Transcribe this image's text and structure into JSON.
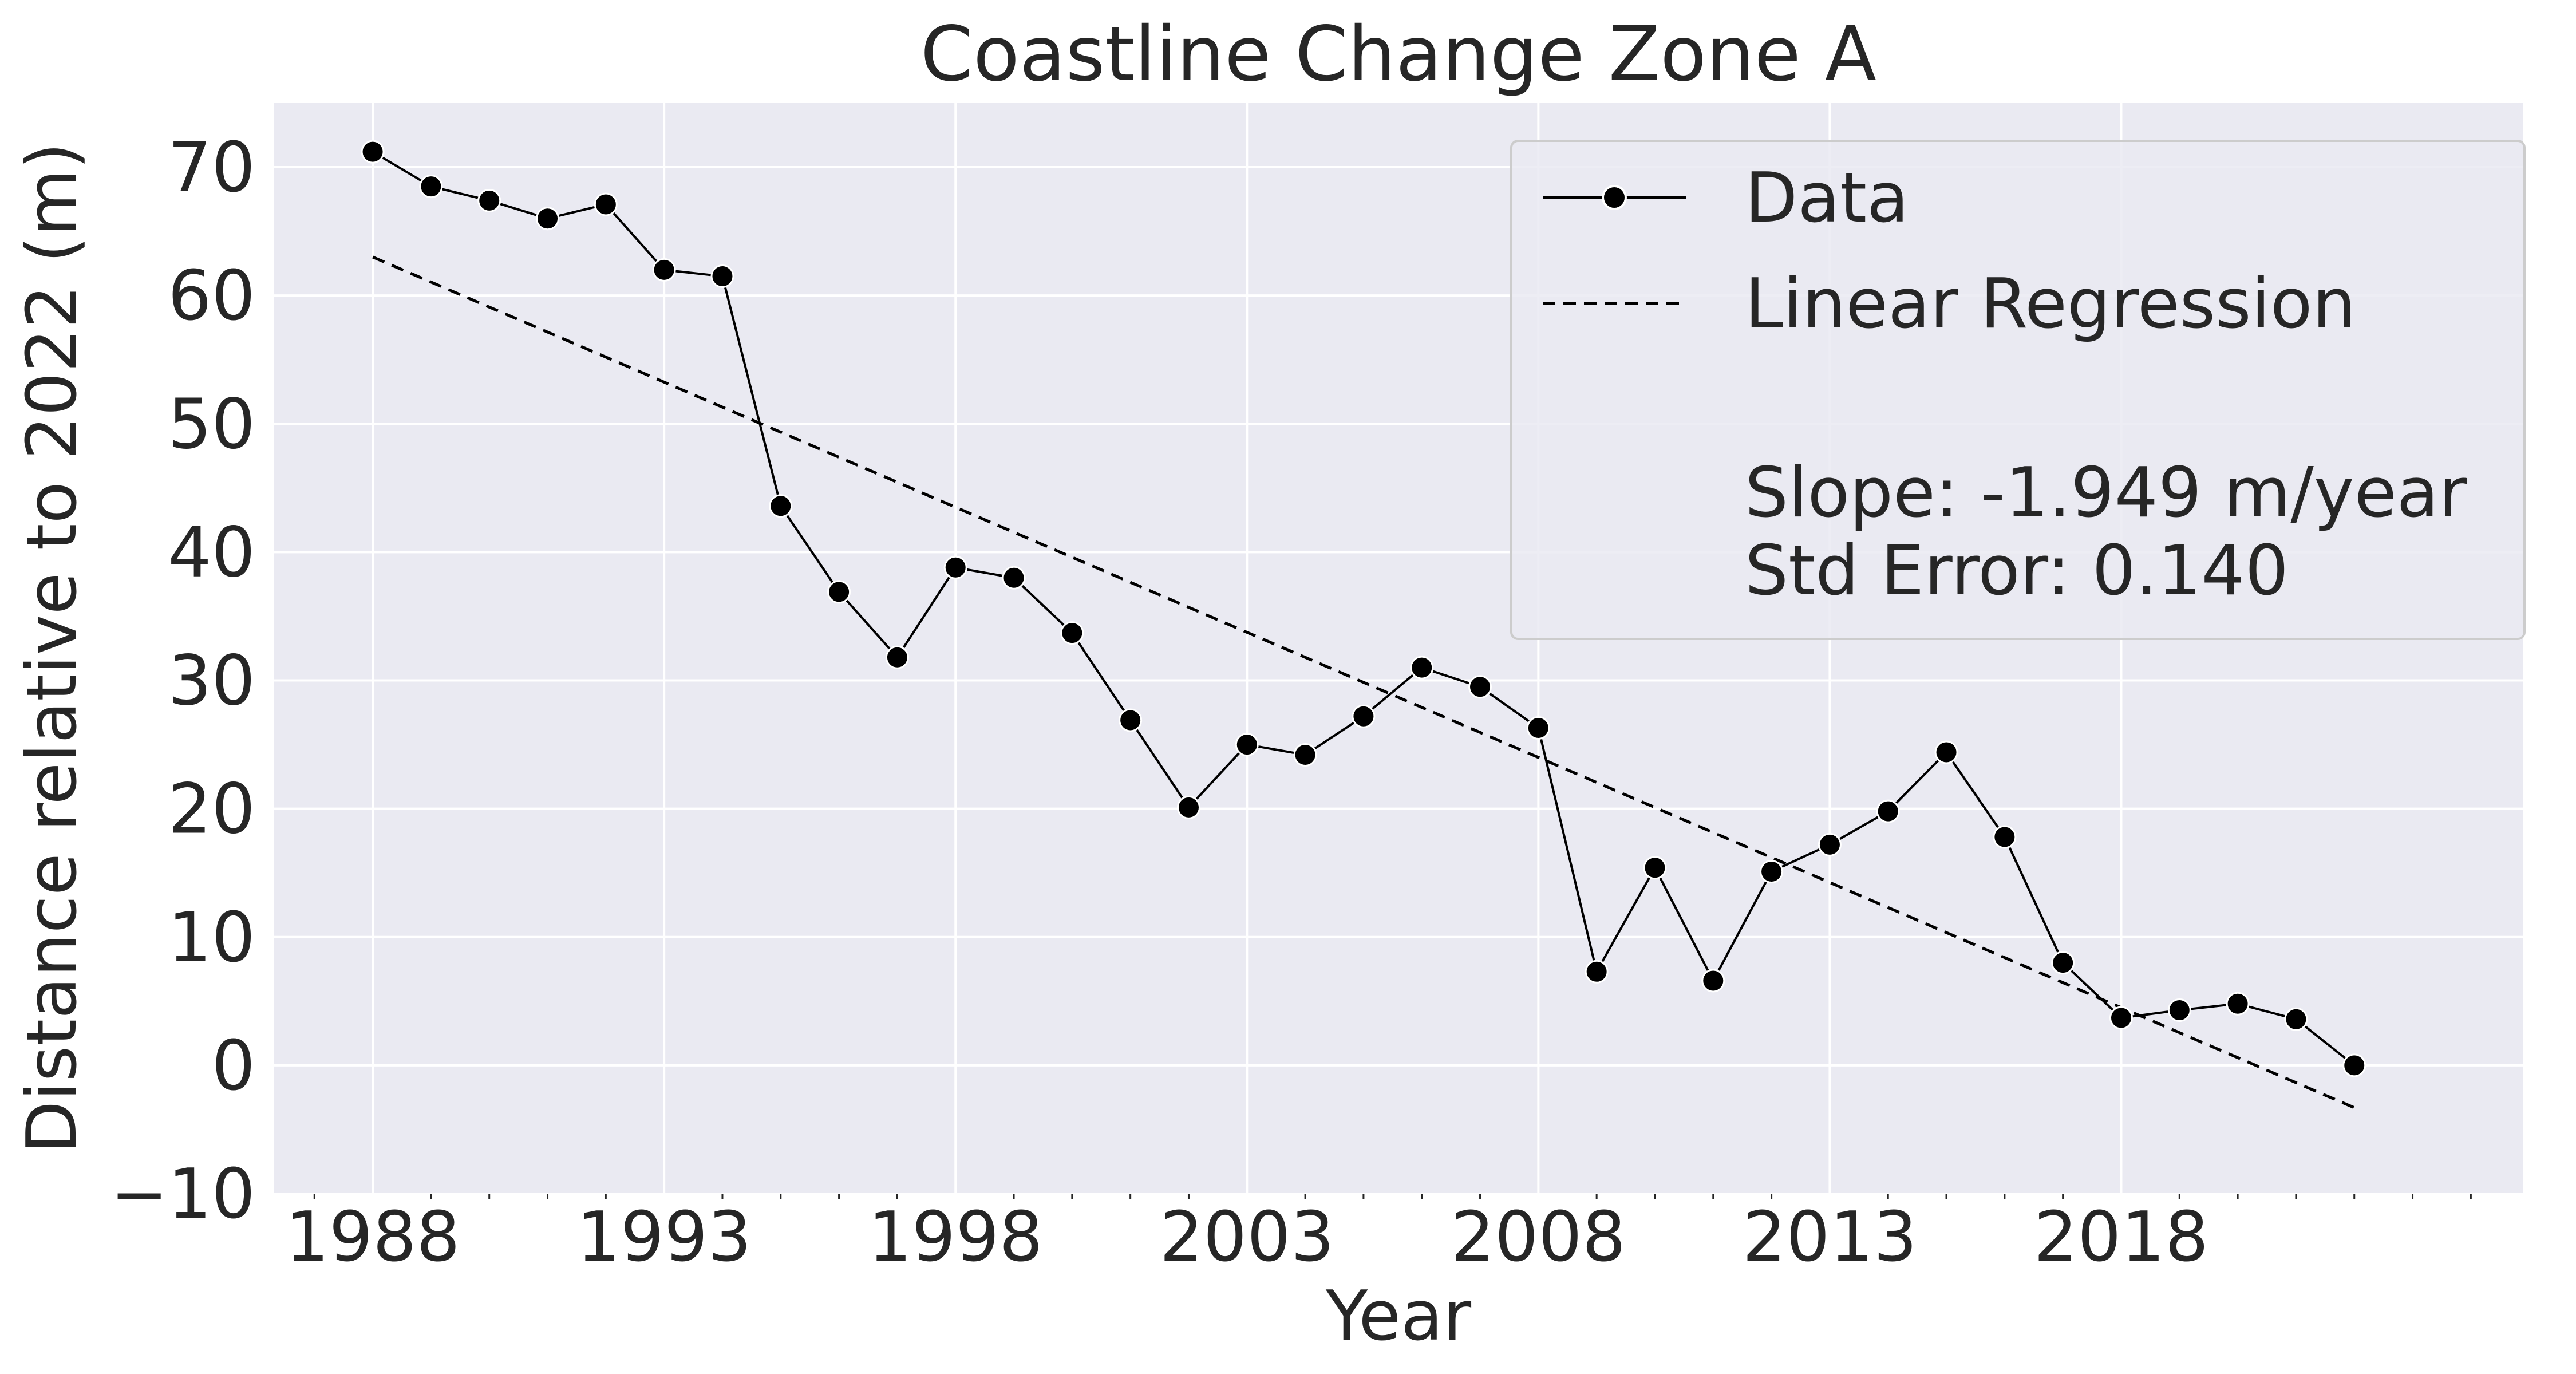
{
  "chart_data": {
    "type": "line",
    "title": "Coastline Change Zone A",
    "xlabel": "Year",
    "ylabel": "Distance relative to 2022 (m)",
    "xlim": [
      1986.3,
      2024.9
    ],
    "ylim": [
      -10,
      75
    ],
    "x_ticks": [
      1988,
      1993,
      1998,
      2003,
      2008,
      2013,
      2018
    ],
    "y_ticks": [
      -10,
      0,
      10,
      20,
      30,
      40,
      50,
      60,
      70
    ],
    "grid": true,
    "legend_position": "top-right",
    "series": [
      {
        "name": "Data",
        "style": "solid-with-markers",
        "color": "#000000",
        "x": [
          1988,
          1989,
          1990,
          1991,
          1992,
          1993,
          1994,
          1995,
          1996,
          1997,
          1998,
          1999,
          2000,
          2001,
          2002,
          2003,
          2004,
          2005,
          2006,
          2007,
          2008,
          2009,
          2010,
          2011,
          2012,
          2013,
          2014,
          2015,
          2016,
          2017,
          2018,
          2019,
          2020,
          2021,
          2022
        ],
        "y": [
          71.2,
          68.5,
          67.4,
          66.0,
          67.1,
          62.0,
          61.5,
          43.6,
          36.9,
          31.8,
          38.8,
          38.0,
          33.7,
          26.9,
          20.1,
          25.0,
          24.2,
          27.2,
          31.0,
          29.5,
          26.3,
          7.3,
          15.4,
          6.6,
          15.1,
          17.2,
          19.8,
          24.4,
          17.8,
          8.0,
          3.7,
          4.3,
          4.8,
          3.6,
          0.0
        ]
      },
      {
        "name": "Linear Regression",
        "style": "dashed",
        "color": "#000000",
        "x": [
          1988,
          2022
        ],
        "y": [
          63.0,
          -3.3
        ]
      }
    ],
    "annotation_lines": [
      "Slope: -1.949 m/year",
      "Std Error: 0.140"
    ],
    "colors": {
      "plot_background": "#eaeaf2",
      "grid": "#ffffff",
      "text": "#262626",
      "line": "#000000"
    }
  }
}
